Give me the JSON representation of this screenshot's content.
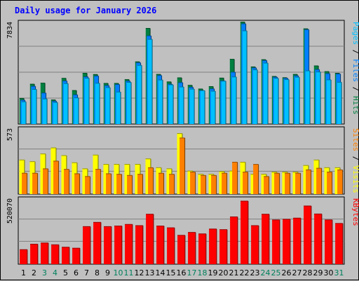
{
  "chart_data": {
    "type": "bar",
    "title": "Daily usage for January 2026",
    "categories": [
      "1",
      "2",
      "3",
      "4",
      "5",
      "6",
      "7",
      "8",
      "9",
      "10",
      "11",
      "12",
      "13",
      "14",
      "15",
      "16",
      "17",
      "18",
      "19",
      "20",
      "21",
      "22",
      "23",
      "24",
      "25",
      "26",
      "27",
      "28",
      "29",
      "30",
      "31"
    ],
    "weekend_days": [
      3,
      4,
      10,
      11,
      17,
      18,
      24,
      25,
      31
    ],
    "panels": [
      {
        "id": "hits-files-pages",
        "max_label": "7834",
        "ymax": 7834,
        "series": [
          {
            "name": "Hits",
            "values": [
              2020,
              3140,
              3220,
              1900,
              3600,
              2640,
              4000,
              3900,
              3200,
              3200,
              3500,
              4900,
              7530,
              3910,
              3320,
              3640,
              3050,
              2760,
              2950,
              3620,
              5100,
              8030,
              4500,
              5070,
              3750,
              3650,
              3910,
              7500,
              4580,
              4130,
              4000
            ]
          },
          {
            "name": "Files",
            "values": [
              1880,
              2970,
              2440,
              1800,
              3390,
              2300,
              3720,
              3780,
              3030,
              3110,
              3380,
              4820,
              6940,
              3820,
              3140,
              3260,
              2890,
              2630,
              2770,
              3400,
              4080,
              7890,
              4420,
              5000,
              3690,
              3600,
              3800,
              7430,
              4290,
              3970,
              3940
            ]
          },
          {
            "name": "Pages",
            "values": [
              1750,
              2730,
              1980,
              1700,
              3190,
              2060,
              3610,
              3210,
              2870,
              2520,
              3280,
              4620,
              6670,
              3470,
              3090,
              2920,
              2750,
              2630,
              2590,
              3380,
              3710,
              7340,
              4270,
              4800,
              3600,
              3500,
              3690,
              4190,
              4100,
              3480,
              3290
            ]
          }
        ],
        "label_parts": [
          {
            "text": "Pages",
            "color": "#00c0ff"
          },
          {
            "text": " / ",
            "color": "#000000"
          },
          {
            "text": "Files",
            "color": "#0080ff"
          },
          {
            "text": " / ",
            "color": "#000000"
          },
          {
            "text": "Hits",
            "color": "#008040"
          }
        ]
      },
      {
        "id": "visits-sites",
        "max_label": "573",
        "ymax": 573,
        "series": [
          {
            "name": "Visits",
            "values": [
              310,
              295,
              365,
              420,
              350,
              285,
              230,
              355,
              270,
              270,
              270,
              270,
              320,
              240,
              230,
              550,
              210,
              180,
              180,
              205,
              210,
              290,
              180,
              180,
              200,
              200,
              200,
              260,
              310,
              240,
              240
            ]
          },
          {
            "name": "Sites",
            "values": [
              190,
              190,
              230,
              300,
              225,
              185,
              160,
              225,
              185,
              180,
              170,
              180,
              240,
              190,
              180,
              510,
              200,
              170,
              170,
              190,
              290,
              200,
              270,
              160,
              190,
              190,
              190,
              220,
              235,
              200,
              220
            ]
          }
        ],
        "label_parts": [
          {
            "text": "Sites",
            "color": "#ff8000"
          },
          {
            "text": " / ",
            "color": "#000000"
          },
          {
            "text": "Visits",
            "color": "#ffff00"
          }
        ]
      },
      {
        "id": "kbytes",
        "max_label": "520070",
        "ymax": 520070,
        "series": [
          {
            "name": "KBytes",
            "values": [
              120000,
              165000,
              175000,
              160000,
              140000,
              132000,
              310000,
              345000,
              310000,
              315000,
              328000,
              318000,
              412000,
              315000,
              300000,
              238000,
              262000,
              250000,
              290000,
              285000,
              390000,
              520000,
              318000,
              412000,
              365000,
              370000,
              380000,
              480000,
              414000,
              365000,
              336000
            ]
          }
        ],
        "label_parts": [
          {
            "text": "KBytes",
            "color": "#ff0000"
          }
        ]
      }
    ],
    "colors": {
      "Hits": "#008040",
      "Files": "#0080ff",
      "Pages": "#00c0ff",
      "Visits": "#ffff00",
      "Sites": "#ff8000",
      "KBytes": "#ff0000",
      "title": "#0000ff",
      "weekday_label": "#000000",
      "weekend_label": "#00805c"
    }
  }
}
